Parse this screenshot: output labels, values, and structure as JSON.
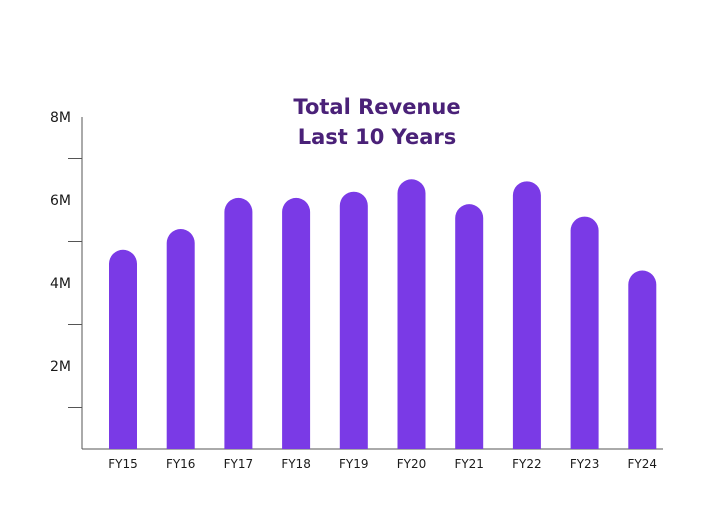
{
  "chart_data": {
    "type": "bar",
    "title_line1": "Total Revenue",
    "title_line2": "Last 10 Years",
    "categories": [
      "FY15",
      "FY16",
      "FY17",
      "FY18",
      "FY19",
      "FY20",
      "FY21",
      "FY22",
      "FY23",
      "FY24"
    ],
    "values": [
      4.8,
      5.3,
      6.05,
      6.05,
      6.2,
      6.5,
      5.9,
      6.45,
      5.6,
      4.3
    ],
    "ylim": [
      0,
      8
    ],
    "y_ticks": [
      2,
      4,
      6,
      8
    ],
    "y_tick_labels": [
      "2M",
      "4M",
      "6M",
      "8M"
    ],
    "y_minor_ticks": [
      1,
      3,
      5,
      7
    ],
    "xlabel": "",
    "ylabel": "",
    "grid": false,
    "bar_color": "#7a3ae6",
    "title_color": "#4a2178"
  }
}
